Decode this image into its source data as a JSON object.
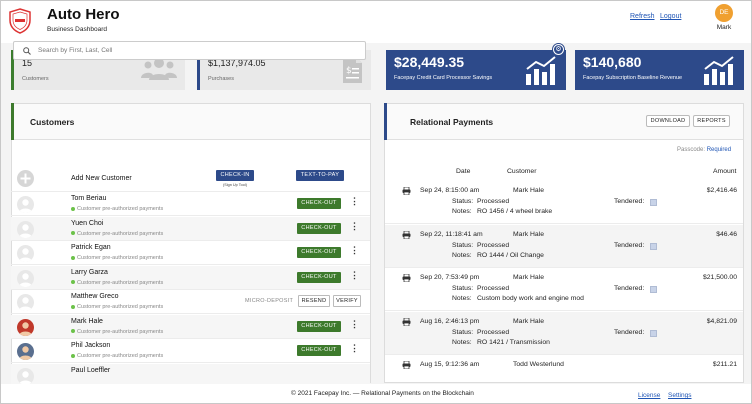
{
  "header": {
    "title": "Auto Hero",
    "subtitle": "Business Dashboard",
    "refresh_label": "Refresh",
    "logout_label": "Logout",
    "user_initials": "DE",
    "user_name": "Mark"
  },
  "stats": {
    "customers_value": "15",
    "customers_label": "Customers",
    "purchases_value": "$1,137,974.05",
    "purchases_label": "Purchases",
    "savings_value": "$28,449.35",
    "savings_label": "Facepay Credit Card Processor Savings",
    "revenue_value": "$140,680",
    "revenue_label": "Facepay Subscription Baseline Revenue"
  },
  "customers": {
    "title": "Customers",
    "search_placeholder": "Search by First, Last, Cell",
    "add_label": "Add New Customer",
    "checkin_label": "CHECK-IN",
    "signup_note": "(Sign Up Tool)",
    "texttopay_label": "TEXT-TO-PAY",
    "checkout_label": "CHECK-OUT",
    "micro_label": "MICRO-DEPOSIT",
    "resend_label": "RESEND",
    "verify_label": "VERIFY",
    "status_text": "Customer pre-authorized payments",
    "list": [
      {
        "name": "Tom Beriau",
        "status": "Customer pre-authorized payments"
      },
      {
        "name": "Yuen Choi",
        "status": "Customer pre-authorized payments"
      },
      {
        "name": "Patrick Egan",
        "status": "Customer pre-authorized payments"
      },
      {
        "name": "Larry Garza",
        "status": "Customer pre-authorized payments"
      },
      {
        "name": "Matthew Greco",
        "status": "Customer pre-authorized payments"
      },
      {
        "name": "Mark Hale",
        "status": "Customer pre-authorized payments"
      },
      {
        "name": "Phil Jackson",
        "status": "Customer pre-authorized payments"
      },
      {
        "name": "Paul Loeffler",
        "status": ""
      }
    ]
  },
  "payments": {
    "title": "Relational Payments",
    "download_label": "DOWNLOAD",
    "reports_label": "REPORTS",
    "passcode_label": "Passcode:",
    "passcode_value": "Required",
    "col_date": "Date",
    "col_customer": "Customer",
    "col_amount": "Amount",
    "status_label": "Status:",
    "notes_label": "Notes:",
    "tendered_label": "Tendered:",
    "rows": [
      {
        "date": "Sep 24, 8:15:00 am",
        "customer": "Mark Hale",
        "amount": "$2,416.46",
        "status": "Processed",
        "notes": "RO 1456 / 4 wheel brake"
      },
      {
        "date": "Sep 22, 11:18:41 am",
        "customer": "Mark Hale",
        "amount": "$46.46",
        "status": "Processed",
        "notes": "RO 1444 / Oil Change"
      },
      {
        "date": "Sep 20, 7:53:49 pm",
        "customer": "Mark Hale",
        "amount": "$21,500.00",
        "status": "Processed",
        "notes": "Custom body work and engine mod"
      },
      {
        "date": "Aug 16, 2:46:13 pm",
        "customer": "Mark Hale",
        "amount": "$4,821.09",
        "status": "Processed",
        "notes": "RO 1421 / Transmission"
      },
      {
        "date": "Aug 15, 9:12:36 am",
        "customer": "Todd Westerlund",
        "amount": "$211.21",
        "status": "",
        "notes": ""
      }
    ]
  },
  "footer": {
    "copyright": "© 2021 Facepay Inc. — Relational Payments on the Blockchain",
    "license_label": "License",
    "settings_label": "Settings"
  },
  "colors": {
    "green_accent": "#3d7a2c",
    "navy": "#2d4a8a",
    "link_blue": "#1f55b5",
    "avatar_orange": "#f0a030"
  }
}
